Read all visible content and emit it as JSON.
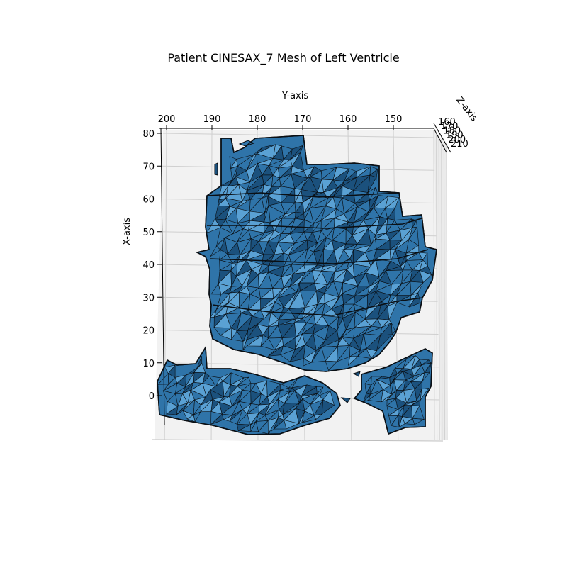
{
  "chart_data": {
    "type": "mesh3d",
    "title": "Patient CINESAX_7 Mesh of Left Ventricle",
    "xlabel": "X-axis",
    "ylabel": "Y-axis",
    "zlabel": "Z-axis",
    "x_ticks": [
      0,
      10,
      20,
      30,
      40,
      50,
      60,
      70,
      80
    ],
    "y_ticks": [
      200,
      190,
      180,
      170,
      160,
      150
    ],
    "z_ticks": [
      160,
      170,
      180,
      190,
      200,
      210
    ],
    "xlim": [
      -10,
      82
    ],
    "ylim": [
      200,
      140
    ],
    "zlim": [
      160,
      210
    ],
    "grid": true,
    "colors": {
      "face": "#2f74a9",
      "face_light": "#5da3d6",
      "face_dark": "#1a4f7a",
      "edge": "#0a0f14",
      "pane": "#f2f2f2",
      "grid": "#cfcfcf"
    }
  }
}
